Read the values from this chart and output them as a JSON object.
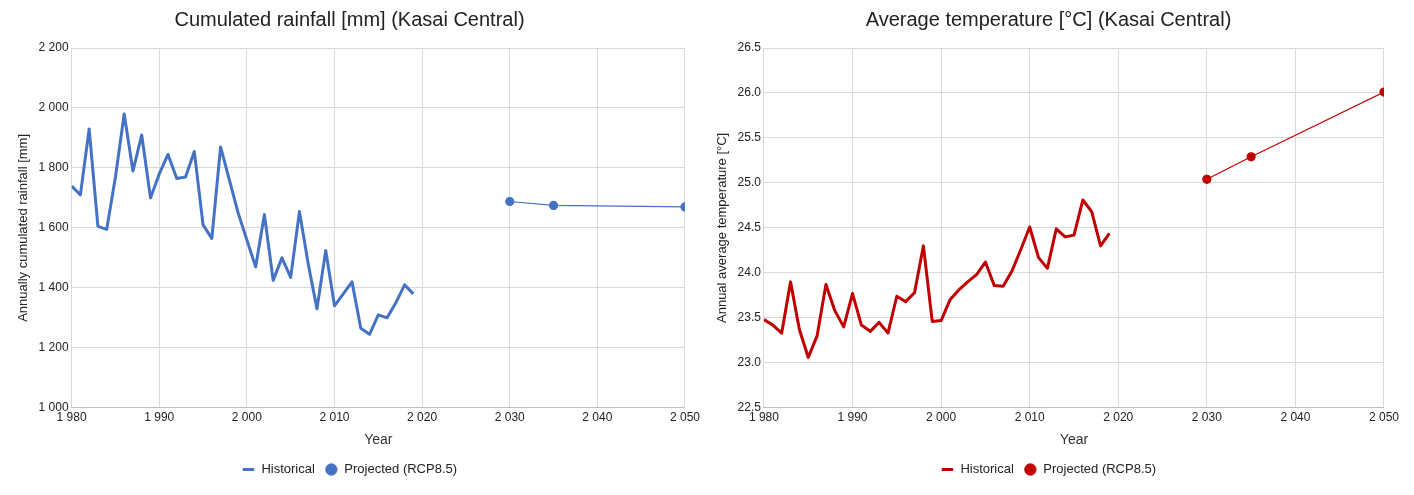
{
  "chart_data": [
    {
      "type": "line",
      "title": "Cumulated rainfall [mm] (Kasai Central)",
      "xlabel": "Year",
      "ylabel": "Annually cumulated rainfall [mm]",
      "xlim": [
        1980,
        2050
      ],
      "xticks": [
        {
          "value": 1980,
          "label": "1 980"
        },
        {
          "value": 1990,
          "label": "1 990"
        },
        {
          "value": 2000,
          "label": "2 000"
        },
        {
          "value": 2010,
          "label": "2 010"
        },
        {
          "value": 2020,
          "label": "2 020"
        },
        {
          "value": 2030,
          "label": "2 030"
        },
        {
          "value": 2040,
          "label": "2 040"
        },
        {
          "value": 2050,
          "label": "2 050"
        }
      ],
      "ylim": [
        1000,
        2200
      ],
      "yticks": [
        {
          "value": 1000,
          "label": "1 000"
        },
        {
          "value": 1200,
          "label": "1 200"
        },
        {
          "value": 1400,
          "label": "1 400"
        },
        {
          "value": 1600,
          "label": "1 600"
        },
        {
          "value": 1800,
          "label": "1 800"
        },
        {
          "value": 2000,
          "label": "2 000"
        },
        {
          "value": 2200,
          "label": "2 200"
        }
      ],
      "grid": true,
      "legend": "bottom",
      "series": [
        {
          "name": "Historical",
          "color": "#4472c4",
          "marker": "none",
          "x": [
            1980,
            1981,
            1982,
            1983,
            1984,
            1985,
            1986,
            1987,
            1988,
            1989,
            1990,
            1991,
            1992,
            1993,
            1994,
            1995,
            1996,
            1997,
            1998,
            1999,
            2000,
            2001,
            2002,
            2003,
            2004,
            2005,
            2006,
            2007,
            2008,
            2009,
            2010,
            2011,
            2012,
            2013,
            2014,
            2015,
            2016,
            2017,
            2018,
            2019
          ],
          "values": [
            1740,
            1710,
            1930,
            1605,
            1595,
            1770,
            1980,
            1790,
            1910,
            1700,
            1780,
            1845,
            1765,
            1770,
            1855,
            1610,
            1565,
            1870,
            1760,
            1650,
            1560,
            1470,
            1645,
            1425,
            1500,
            1435,
            1655,
            1480,
            1330,
            1525,
            1340,
            1380,
            1420,
            1265,
            1245,
            1310,
            1300,
            1350,
            1410,
            1380
          ]
        },
        {
          "name": "Projected (RCP8.5)",
          "color": "#4472c4",
          "marker": "circle",
          "x": [
            2030,
            2035,
            2050
          ],
          "values": [
            1688,
            1675,
            1670
          ]
        }
      ]
    },
    {
      "type": "line",
      "title": "Average temperature [°C] (Kasai Central)",
      "xlabel": "Year",
      "ylabel": "Annual average temperature [°C]",
      "xlim": [
        1980,
        2050
      ],
      "xticks": [
        {
          "value": 1980,
          "label": "1 980"
        },
        {
          "value": 1990,
          "label": "1 990"
        },
        {
          "value": 2000,
          "label": "2 000"
        },
        {
          "value": 2010,
          "label": "2 010"
        },
        {
          "value": 2020,
          "label": "2 020"
        },
        {
          "value": 2030,
          "label": "2 030"
        },
        {
          "value": 2040,
          "label": "2 040"
        },
        {
          "value": 2050,
          "label": "2 050"
        }
      ],
      "ylim": [
        22.5,
        26.5
      ],
      "yticks": [
        {
          "value": 22.5,
          "label": "22.5"
        },
        {
          "value": 23,
          "label": "23.0"
        },
        {
          "value": 23.5,
          "label": "23.5"
        },
        {
          "value": 24,
          "label": "24.0"
        },
        {
          "value": 24.5,
          "label": "24.5"
        },
        {
          "value": 25,
          "label": "25.0"
        },
        {
          "value": 25.5,
          "label": "25.5"
        },
        {
          "value": 26,
          "label": "26.0"
        },
        {
          "value": 26.5,
          "label": "26.5"
        }
      ],
      "grid": true,
      "legend": "bottom",
      "series": [
        {
          "name": "Historical",
          "color": "#c00000",
          "marker": "none",
          "x": [
            1980,
            1981,
            1982,
            1983,
            1984,
            1985,
            1986,
            1987,
            1988,
            1989,
            1990,
            1991,
            1992,
            1993,
            1994,
            1995,
            1996,
            1997,
            1998,
            1999,
            2000,
            2001,
            2002,
            2003,
            2004,
            2005,
            2006,
            2007,
            2008,
            2009,
            2010,
            2011,
            2012,
            2013,
            2014,
            2015,
            2016,
            2017,
            2018,
            2019
          ],
          "values": [
            23.48,
            23.42,
            23.33,
            23.9,
            23.37,
            23.06,
            23.3,
            23.87,
            23.58,
            23.4,
            23.77,
            23.42,
            23.35,
            23.45,
            23.33,
            23.74,
            23.68,
            23.78,
            24.3,
            23.46,
            23.47,
            23.7,
            23.81,
            23.9,
            23.98,
            24.12,
            23.86,
            23.85,
            24.02,
            24.26,
            24.51,
            24.17,
            24.05,
            24.49,
            24.4,
            24.42,
            24.81,
            24.68,
            24.3,
            24.44
          ]
        },
        {
          "name": "Projected (RCP8.5)",
          "color": "#c00000",
          "marker": "circle",
          "x": [
            2030,
            2035,
            2050
          ],
          "values": [
            25.04,
            25.29,
            26.01
          ]
        }
      ]
    }
  ]
}
